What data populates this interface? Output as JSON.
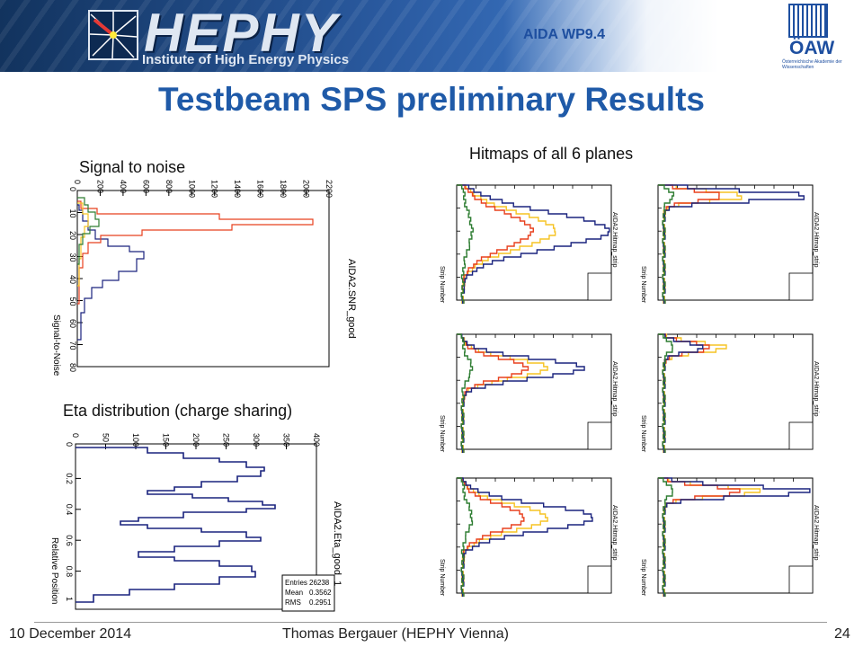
{
  "header": {
    "logo_text": "HEPHY",
    "logo_subtitle": "Institute of High Energy Physics",
    "project_label": "AIDA WP9.4",
    "oaw_text": "ÖAW",
    "oaw_subtitle": "Österreichische Akademie der Wissenschaften"
  },
  "title": "Testbeam SPS preliminary Results",
  "captions": {
    "snr": "Signal to noise",
    "eta": "Eta distribution (charge sharing)",
    "hitmaps": "Hitmaps of all 6 planes"
  },
  "snr_plot": {
    "hist_name": "AIDA2.SNR_good",
    "axis_label": "Signal-to-Noise",
    "count_ticks": [
      "0",
      "200",
      "400",
      "600",
      "800",
      "1000",
      "1200",
      "1400",
      "1600",
      "1800",
      "2000",
      "2200"
    ],
    "snr_ticks": [
      "0",
      "10",
      "20",
      "30",
      "40",
      "50",
      "60",
      "70",
      "80"
    ]
  },
  "eta_plot": {
    "hist_name": "AIDA2.Eta_good_1",
    "axis_label": "Relative Position",
    "count_ticks": [
      "0",
      "50",
      "100",
      "150",
      "200",
      "250",
      "300",
      "350",
      "400"
    ],
    "pos_ticks": [
      "0",
      "0.2",
      "0.4",
      "0.6",
      "0.8",
      "1"
    ],
    "stats": [
      {
        "label": "Entries",
        "value": "26238"
      },
      {
        "label": "Mean",
        "value": "0.3562"
      },
      {
        "label": "RMS",
        "value": "0.2951"
      }
    ]
  },
  "hitmap": {
    "x_label": "Strip Number",
    "hist_name": "AIDA2.Hitmap_strip"
  },
  "colors": {
    "navy": "#1a237e",
    "red": "#e8401e",
    "yellow": "#f6c324",
    "green": "#2e7d32",
    "title_blue": "#1f5aa8"
  },
  "footer": {
    "date": "10 December 2014",
    "author": "Thomas Bergauer (HEPHY Vienna)",
    "page": "24"
  }
}
